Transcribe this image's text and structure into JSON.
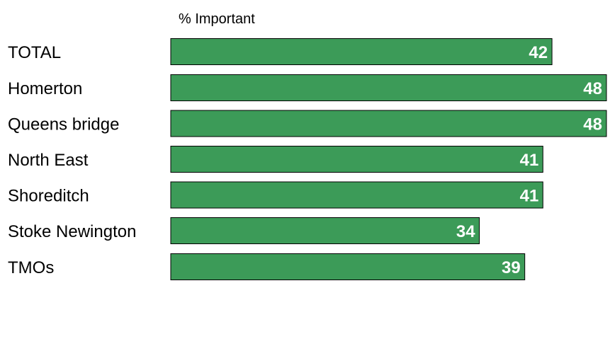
{
  "chart_data": {
    "type": "bar",
    "orientation": "horizontal",
    "title": "% Important",
    "categories": [
      "TOTAL",
      "Homerton",
      "Queens bridge",
      "North East",
      "Shoreditch",
      "Stoke Newington",
      "TMOs"
    ],
    "values": [
      42,
      48,
      48,
      41,
      41,
      34,
      39
    ],
    "data_labels": [
      "42",
      "48",
      "48",
      "41",
      "41",
      "34",
      "39"
    ],
    "groups": [
      [
        "TOTAL"
      ],
      [
        "Homerton",
        "Queens bridge",
        "North East",
        "Shoreditch",
        "Stoke Newington"
      ],
      [
        "TMOs"
      ]
    ],
    "xlim": [
      0,
      48
    ],
    "grid": false,
    "legend": "none",
    "bar_color": "#3c9b58",
    "bar_edge_color": "#000000",
    "label_color": "#ffffff"
  }
}
